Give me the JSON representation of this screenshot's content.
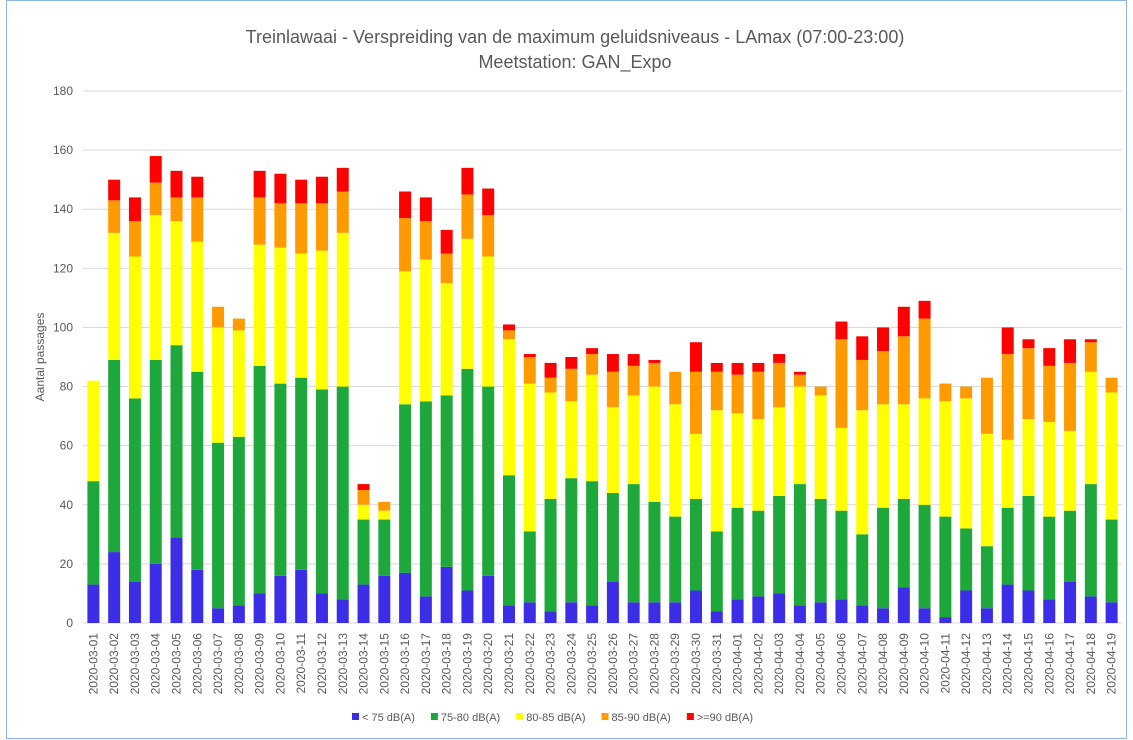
{
  "chart_data": {
    "type": "bar",
    "stacked": true,
    "title": "Treinlawaai - Verspreiding van de maximum geluidsniveaus - LAmax (07:00-23:00)",
    "subtitle": "Meetstation: GAN_Expo",
    "y_label": "Aantal passages",
    "categories": [
      "2020-03-01",
      "2020-03-02",
      "2020-03-03",
      "2020-03-04",
      "2020-03-05",
      "2020-03-06",
      "2020-03-07",
      "2020-03-08",
      "2020-03-09",
      "2020-03-10",
      "2020-03-11",
      "2020-03-12",
      "2020-03-13",
      "2020-03-14",
      "2020-03-15",
      "2020-03-16",
      "2020-03-17",
      "2020-03-18",
      "2020-03-19",
      "2020-03-20",
      "2020-03-21",
      "2020-03-22",
      "2020-03-23",
      "2020-03-24",
      "2020-03-25",
      "2020-03-26",
      "2020-03-27",
      "2020-03-28",
      "2020-03-29",
      "2020-03-30",
      "2020-03-31",
      "2020-04-01",
      "2020-04-02",
      "2020-04-03",
      "2020-04-04",
      "2020-04-05",
      "2020-04-06",
      "2020-04-07",
      "2020-04-08",
      "2020-04-09",
      "2020-04-10",
      "2020-04-11",
      "2020-04-12",
      "2020-04-13",
      "2020-04-14",
      "2020-04-15",
      "2020-04-16",
      "2020-04-17",
      "2020-04-18",
      "2020-04-19"
    ],
    "series": [
      {
        "name": "< 75 dB(A)",
        "color": "#3b2ee6",
        "values": [
          13,
          24,
          14,
          20,
          29,
          18,
          5,
          6,
          10,
          16,
          18,
          10,
          8,
          13,
          16,
          17,
          9,
          19,
          11,
          16,
          6,
          7,
          4,
          7,
          6,
          14,
          7,
          7,
          7,
          11,
          4,
          8,
          9,
          10,
          6,
          7,
          8,
          6,
          5,
          12,
          5,
          2,
          11,
          5,
          13,
          11,
          8,
          14,
          9,
          7
        ]
      },
      {
        "name": "75-80 dB(A)",
        "color": "#1ea83c",
        "values": [
          35,
          65,
          62,
          69,
          65,
          67,
          56,
          57,
          77,
          65,
          65,
          69,
          72,
          22,
          19,
          57,
          66,
          58,
          75,
          64,
          44,
          24,
          38,
          42,
          42,
          30,
          40,
          34,
          29,
          31,
          27,
          31,
          29,
          33,
          41,
          35,
          30,
          24,
          34,
          30,
          35,
          34,
          21,
          21,
          26,
          32,
          28,
          24,
          38,
          28
        ]
      },
      {
        "name": "80-85 dB(A)",
        "color": "#ffff00",
        "values": [
          34,
          43,
          48,
          49,
          42,
          44,
          39,
          36,
          41,
          46,
          42,
          47,
          52,
          5,
          3,
          45,
          48,
          38,
          44,
          44,
          46,
          50,
          36,
          26,
          36,
          29,
          30,
          39,
          38,
          22,
          41,
          32,
          31,
          30,
          33,
          35,
          28,
          42,
          35,
          32,
          36,
          39,
          44,
          38,
          23,
          26,
          32,
          27,
          38,
          43
        ]
      },
      {
        "name": "85-90 dB(A)",
        "color": "#ff9a00",
        "values": [
          0,
          11,
          12,
          11,
          8,
          15,
          7,
          4,
          16,
          15,
          17,
          16,
          14,
          5,
          3,
          18,
          13,
          10,
          15,
          14,
          3,
          9,
          5,
          11,
          7,
          12,
          10,
          8,
          11,
          21,
          13,
          13,
          16,
          15,
          4,
          3,
          30,
          17,
          18,
          23,
          27,
          6,
          4,
          19,
          29,
          24,
          19,
          23,
          10,
          5
        ]
      },
      {
        "name": ">=90 dB(A)",
        "color": "#ff0000",
        "values": [
          0,
          7,
          8,
          9,
          9,
          7,
          0,
          0,
          9,
          10,
          8,
          9,
          8,
          2,
          0,
          9,
          8,
          8,
          9,
          9,
          2,
          1,
          5,
          4,
          2,
          6,
          4,
          1,
          0,
          10,
          3,
          4,
          3,
          3,
          1,
          0,
          6,
          8,
          8,
          10,
          6,
          0,
          0,
          0,
          9,
          3,
          6,
          8,
          1,
          0
        ]
      }
    ],
    "ylim": [
      0,
      180
    ],
    "yticks": [
      0,
      20,
      40,
      60,
      80,
      100,
      120,
      140,
      160,
      180
    ],
    "grid": true,
    "legend": "bottom"
  }
}
